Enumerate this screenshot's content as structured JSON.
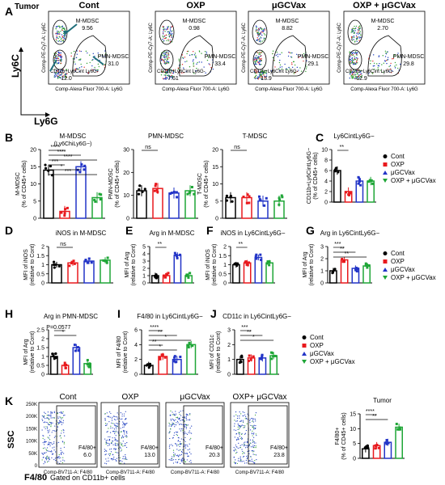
{
  "panel_a": {
    "letter": "A",
    "tumor_label": "Tumor",
    "plots": [
      {
        "title": "Cont",
        "mmdsc_label": "M-MDSC",
        "mmdsc_val": "9.56",
        "pmn_label": "PMN-MDSC",
        "pmn_val": "31.0",
        "t_label": "CD11b+Ly6Cint Ly6G-",
        "t_val": "12.0"
      },
      {
        "title": "OXP",
        "mmdsc_label": "M-MDSC",
        "mmdsc_val": "0.98",
        "pmn_label": "PMN-MDSC",
        "pmn_val": "33.4",
        "t_label": "CD11b+Ly6Cint Ly6G-",
        "t_val": "7.61"
      },
      {
        "title": "μGCVax",
        "mmdsc_label": "M-MDSC",
        "mmdsc_val": "8.82",
        "pmn_label": "PMN-MDSC",
        "pmn_val": "29.1",
        "t_label": "CD11b+Ly6Cint Ly6G-",
        "t_val": "13.9"
      },
      {
        "title": "OXP + μGCVax",
        "mmdsc_label": "M-MDSC",
        "mmdsc_val": "2.70",
        "pmn_label": "PMN-MDSC",
        "pmn_val": "29.8",
        "t_label": "CD11b+Ly6Cint Ly6G-",
        "t_val": "12.9"
      }
    ],
    "yaxis": "Comp-PE-Cy7-A: Ly6C",
    "xaxis": "Comp-Alexa Fluor 700-A: Ly6G",
    "big_y": "Ly6C",
    "big_x": "Ly6G"
  },
  "panel_k": {
    "letter": "K",
    "plots": [
      {
        "title": "Cont",
        "gate": "F4/80+",
        "val": "6.0"
      },
      {
        "title": "OXP",
        "gate": "F4/80+",
        "val": "13.0"
      },
      {
        "title": "μGCVax",
        "gate": "F4/80+",
        "val": "20.3"
      },
      {
        "title": "OXP+ μGCVax",
        "gate": "F4/80+",
        "val": "23.8"
      }
    ],
    "ssc": "SSC",
    "xaxis": "Comp-BV711-A: F4/80",
    "footer": "F4/80",
    "footer_note": "Gated on CD11b+ cells",
    "yticks": [
      "250K",
      "200K",
      "150K",
      "100K",
      "50K",
      "0"
    ]
  },
  "legend": {
    "items": [
      "Cont",
      "OXP",
      "μGCVax",
      "OXP + μGCVax"
    ]
  },
  "colors": {
    "cont": "#000000",
    "oxp": "#e8191d",
    "ugcvax": "#2234c7",
    "combo": "#1fa637"
  },
  "chart_data": [
    {
      "id": "B1",
      "letter": "B",
      "type": "bar",
      "title": "M-MDSC",
      "subtitle": "(Ly6ChiLy6G−)",
      "ylabel": "M-MDSC\n(% of CD45+ cells)",
      "ylim": [
        0,
        20
      ],
      "yticks": [
        0,
        5,
        10,
        15,
        20
      ],
      "categories": [
        "Cont",
        "OXP",
        "μGCVax",
        "OXP + μGCVax"
      ],
      "values": [
        14,
        2,
        15,
        6
      ],
      "sig": [
        "****",
        "****",
        "****",
        "***",
        "*",
        "***"
      ]
    },
    {
      "id": "B2",
      "type": "bar",
      "title": "PMN-MDSC",
      "ylabel": "PMN-MDSC\n(% of CD45+ cells)",
      "ylim": [
        0,
        30
      ],
      "yticks": [
        0,
        10,
        20,
        30
      ],
      "categories": [
        "Cont",
        "OXP",
        "μGCVax",
        "OXP + μGCVax"
      ],
      "values": [
        12,
        13,
        11,
        12
      ],
      "sig": [
        "ns"
      ]
    },
    {
      "id": "B3",
      "type": "bar",
      "title": "T-MDSC",
      "ylabel": "T-MDSC\n(% of CD45+ cells)",
      "ylim": [
        0,
        20
      ],
      "yticks": [
        0,
        5,
        10,
        15,
        20
      ],
      "categories": [
        "Cont",
        "OXP",
        "μGCVax",
        "OXP + μGCVax"
      ],
      "values": [
        6,
        6,
        5,
        5
      ],
      "sig": [
        "ns"
      ]
    },
    {
      "id": "C",
      "letter": "C",
      "type": "bar",
      "title": "Ly6CintLy6G−",
      "ylabel": "CD11b+Ly6CintLy6G−\n(% of CD45+ cells)",
      "ylim": [
        0,
        10
      ],
      "yticks": [
        0,
        2,
        4,
        6,
        8,
        10
      ],
      "categories": [
        "Cont",
        "OXP",
        "μGCVax",
        "OXP + μGCVax"
      ],
      "values": [
        6,
        2,
        4,
        4
      ],
      "sig": [
        "**"
      ]
    },
    {
      "id": "D",
      "letter": "D",
      "type": "bar",
      "title": "iNOS in M-MDSC",
      "ylabel": "MFI of iNOS\n(relative to Cont)",
      "ylim": [
        0,
        2.0
      ],
      "yticks": [
        0.0,
        0.5,
        1.0,
        1.5,
        2.0
      ],
      "categories": [
        "Cont",
        "OXP",
        "μGCVax",
        "OXP + μGCVax"
      ],
      "values": [
        1.0,
        1.1,
        1.2,
        1.25
      ],
      "sig": [
        "ns"
      ]
    },
    {
      "id": "E",
      "letter": "E",
      "type": "bar",
      "title": "Arg in M-MDSC",
      "ylabel": "MFI of Arg\n(relative to Cont)",
      "ylim": [
        0,
        5
      ],
      "yticks": [
        0,
        1,
        2,
        3,
        4,
        5
      ],
      "categories": [
        "Cont",
        "OXP",
        "μGCVax",
        "OXP + μGCVax"
      ],
      "values": [
        1.0,
        1.0,
        3.8,
        1.0
      ],
      "sig": [
        "**"
      ]
    },
    {
      "id": "F",
      "letter": "F",
      "type": "bar",
      "title": "iNOS in Ly6CintLy6G−",
      "ylabel": "MFI of iNOS\n(relative to Cont)",
      "ylim": [
        0,
        2.0
      ],
      "yticks": [
        0.0,
        0.5,
        1.0,
        1.5,
        2.0
      ],
      "categories": [
        "Cont",
        "OXP",
        "μGCVax",
        "OXP + μGCVax"
      ],
      "values": [
        1.0,
        1.1,
        1.4,
        1.1
      ],
      "sig": [
        "**"
      ]
    },
    {
      "id": "G",
      "letter": "G",
      "type": "bar",
      "title": "Arg in Ly6CintLy6G−",
      "ylabel": "MFI of Arg\n(relative to Cont)",
      "ylim": [
        0,
        3
      ],
      "yticks": [
        0,
        1,
        2,
        3
      ],
      "categories": [
        "Cont",
        "OXP",
        "μGCVax",
        "OXP + μGCVax"
      ],
      "values": [
        1.0,
        1.9,
        1.2,
        1.4
      ],
      "sig": [
        "***",
        "**",
        "**"
      ]
    },
    {
      "id": "H",
      "letter": "H",
      "type": "bar",
      "title": "Arg in PMN-MDSC",
      "ylabel": "MFI of Arg\n(relative to Cont)",
      "ylim": [
        0,
        2.5
      ],
      "yticks": [
        0.0,
        0.5,
        1.0,
        1.5,
        2.0,
        2.5
      ],
      "categories": [
        "Cont",
        "OXP",
        "μGCVax",
        "OXP + μGCVax"
      ],
      "values": [
        1.0,
        0.5,
        1.5,
        0.6
      ],
      "sig": [
        "P=0.0577",
        "*"
      ]
    },
    {
      "id": "I",
      "letter": "I",
      "type": "bar",
      "title": "F4/80 in Ly6CintLy6G−",
      "ylabel": "MFI of F4/80\n(relative to Cont)",
      "ylim": [
        0,
        6
      ],
      "yticks": [
        0,
        2,
        4,
        6
      ],
      "categories": [
        "Cont",
        "OXP",
        "μGCVax",
        "OXP + μGCVax"
      ],
      "values": [
        1.2,
        2.4,
        2.0,
        4.0
      ],
      "sig": [
        "****",
        "**",
        "*",
        "**",
        "*"
      ]
    },
    {
      "id": "J",
      "letter": "J",
      "type": "bar",
      "title": "CD11c in Ly6CintLy6G−",
      "ylabel": "MFI of CD11c\n(relative to Cont)",
      "ylim": [
        0,
        3
      ],
      "yticks": [
        0,
        1,
        2,
        3
      ],
      "categories": [
        "Cont",
        "OXP",
        "μGCVax",
        "OXP + μGCVax"
      ],
      "values": [
        1.0,
        1.1,
        1.1,
        1.25
      ],
      "sig": [
        "***",
        "**",
        "*"
      ]
    },
    {
      "id": "K2",
      "type": "bar",
      "title": "Tumor",
      "ylabel": "F4/80+\n(% of CD45+ cells)",
      "ylim": [
        0,
        15
      ],
      "yticks": [
        0,
        5,
        10,
        15
      ],
      "categories": [
        "Cont",
        "OXP",
        "μGCVax",
        "OXP + μGCVax"
      ],
      "values": [
        3.2,
        4.3,
        5.4,
        10.5
      ],
      "sig": [
        "****",
        "**"
      ]
    }
  ]
}
